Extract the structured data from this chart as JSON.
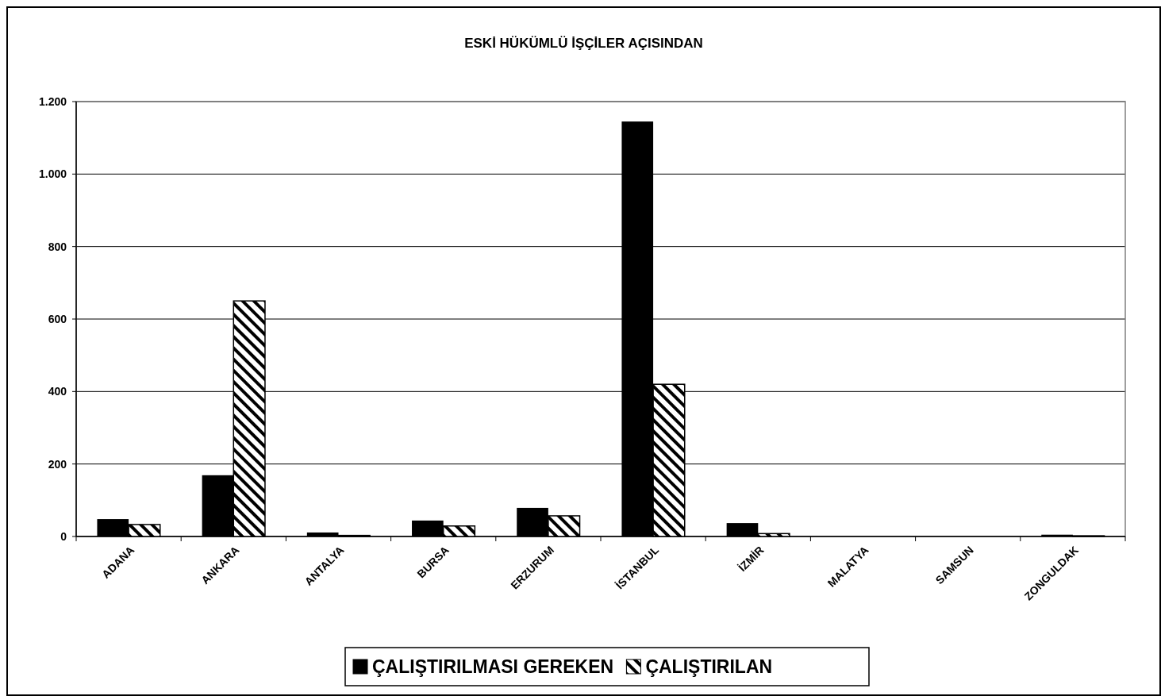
{
  "chart_data": {
    "type": "bar",
    "title": "ESKİ HÜKÜMLÜ İŞÇİLER AÇISINDAN",
    "categories": [
      "ADANA",
      "ANKARA",
      "ANTALYA",
      "BURSA",
      "ERZURUM",
      "İSTANBUL",
      "İZMİR",
      "MALATYA",
      "SAMSUN",
      "ZONGULDAK"
    ],
    "series": [
      {
        "name": "ÇALIŞTIRILMASI GEREKEN",
        "color": "#000000",
        "values": [
          48,
          169,
          11,
          44,
          79,
          1145,
          37,
          0,
          0,
          5
        ]
      },
      {
        "name": "ÇALIŞTIRILAN",
        "color": "#000000",
        "values": [
          33,
          650,
          3,
          29,
          57,
          420,
          8,
          0,
          0,
          2
        ]
      }
    ],
    "ylim": [
      0,
      1200
    ],
    "yticks": [
      0,
      200,
      400,
      600,
      800,
      {
        "value": 1000,
        "label": "1.000"
      },
      {
        "value": 1200,
        "label": "1.200"
      }
    ],
    "grid": "y",
    "legend": "bottom"
  }
}
